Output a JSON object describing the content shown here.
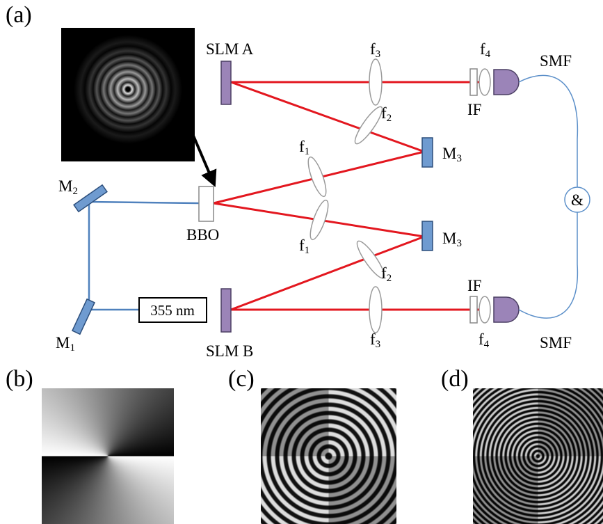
{
  "panels": {
    "a": "(a)",
    "b": "(b)",
    "c": "(c)",
    "d": "(d)"
  },
  "labels": {
    "slm_a": "SLM A",
    "slm_b": "SLM B",
    "bbo": "BBO",
    "laser": "355 nm",
    "coincidence": "&",
    "smf_top": "SMF",
    "smf_bottom": "SMF",
    "if_top": "IF",
    "if_bottom": "IF"
  },
  "lenses": {
    "f3_top": {
      "base": "f",
      "sub": "3"
    },
    "f4_top": {
      "base": "f",
      "sub": "4"
    },
    "f2_top": {
      "base": "f",
      "sub": "2"
    },
    "f1_top": {
      "base": "f",
      "sub": "1"
    },
    "f1_bottom": {
      "base": "f",
      "sub": "1"
    },
    "f2_bottom": {
      "base": "f",
      "sub": "2"
    },
    "f3_bottom": {
      "base": "f",
      "sub": "3"
    },
    "f4_bottom": {
      "base": "f",
      "sub": "4"
    }
  },
  "mirrors": {
    "m2": {
      "base": "M",
      "sub": "2"
    },
    "m1": {
      "base": "M",
      "sub": "1"
    },
    "m3_top": {
      "base": "M",
      "sub": "3"
    },
    "m3_bottom": {
      "base": "M",
      "sub": "3"
    }
  }
}
